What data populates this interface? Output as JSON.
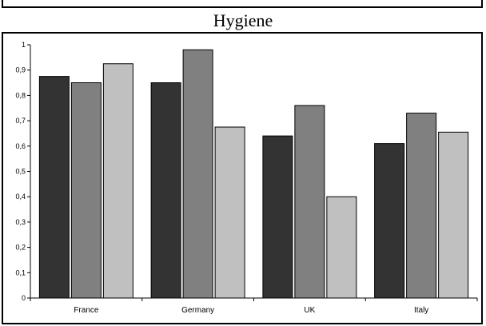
{
  "chart_data": {
    "type": "bar",
    "title": "Hygiene",
    "xlabel": "",
    "ylabel": "",
    "categories": [
      "France",
      "Germany",
      "UK",
      "Italy"
    ],
    "series": [
      {
        "values": [
          0.875,
          0.85,
          0.64,
          0.61
        ],
        "color": "#333333"
      },
      {
        "values": [
          0.85,
          0.98,
          0.76,
          0.73
        ],
        "color": "#808080"
      },
      {
        "values": [
          0.925,
          0.675,
          0.4,
          0.655
        ],
        "color": "#c0c0c0"
      }
    ],
    "ylim": [
      0,
      1
    ],
    "yticks": [
      0,
      0.1,
      0.2,
      0.3,
      0.4,
      0.5,
      0.6,
      0.7,
      0.8,
      0.9,
      1
    ],
    "ytick_labels": [
      "0",
      "0,1",
      "0,2",
      "0,3",
      "0,4",
      "0,5",
      "0,6",
      "0,7",
      "0,8",
      "0,9",
      "1"
    ],
    "grid": false,
    "legend": "none"
  }
}
